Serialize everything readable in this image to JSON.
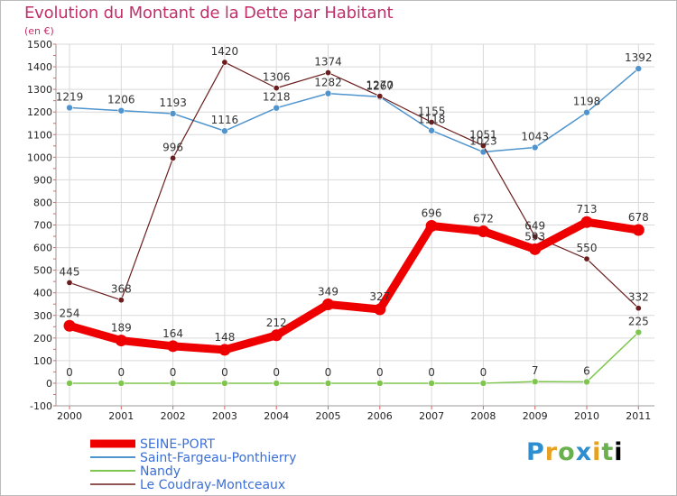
{
  "title": "Evolution du Montant de la Dette par Habitant",
  "subtitle": "(en €)",
  "logo": [
    "P",
    "r",
    "o",
    "x",
    "i",
    "t",
    "i"
  ],
  "chart_data": {
    "type": "line",
    "title": "Evolution du Montant de la Dette par Habitant",
    "subtitle": "(en €)",
    "x": [
      "2000",
      "2001",
      "2002",
      "2003",
      "2004",
      "2005",
      "2006",
      "2007",
      "2008",
      "2009",
      "2010",
      "2011"
    ],
    "ylim": [
      -100,
      1500
    ],
    "yticks": [
      -100,
      0,
      100,
      200,
      300,
      400,
      500,
      600,
      700,
      800,
      900,
      1000,
      1100,
      1200,
      1300,
      1400,
      1500
    ],
    "grid": true,
    "legend": "bottom-left",
    "series": [
      {
        "name": "SEINE-PORT",
        "color": "#ee0000",
        "values": [
          254,
          189,
          164,
          148,
          212,
          349,
          327,
          696,
          672,
          593,
          713,
          678
        ]
      },
      {
        "name": "Saint-Fargeau-Ponthierry",
        "color": "#4f94cd",
        "values": [
          1219,
          1206,
          1193,
          1116,
          1218,
          1282,
          1267,
          1118,
          1023,
          1043,
          1198,
          1392
        ]
      },
      {
        "name": "Nandy",
        "color": "#7fc64e",
        "values": [
          0,
          0,
          0,
          0,
          0,
          0,
          0,
          0,
          0,
          7,
          6,
          225
        ]
      },
      {
        "name": "Le Coudray-Montceaux",
        "color": "#6b1d1d",
        "values": [
          445,
          368,
          996,
          1420,
          1306,
          1374,
          1270,
          1155,
          1051,
          649,
          550,
          332
        ]
      }
    ],
    "data_labels": [
      [
        "254",
        "189",
        "164",
        "148",
        "212",
        "349",
        "327",
        "696",
        "672",
        "593",
        "713",
        "678"
      ],
      [
        "1219",
        "1206",
        "1193",
        "1116",
        "1218",
        "1282",
        "1267",
        "1118",
        "1023",
        "1043",
        "1198",
        "1392"
      ],
      [
        "0",
        "0",
        "0",
        "0",
        "0",
        "0",
        "0",
        "0",
        "0",
        "7",
        "6",
        "225"
      ],
      [
        "445",
        "368",
        "996",
        "1420",
        "1306",
        "1374",
        "1270",
        "1155",
        "1051",
        "649",
        "550",
        "332"
      ]
    ]
  }
}
